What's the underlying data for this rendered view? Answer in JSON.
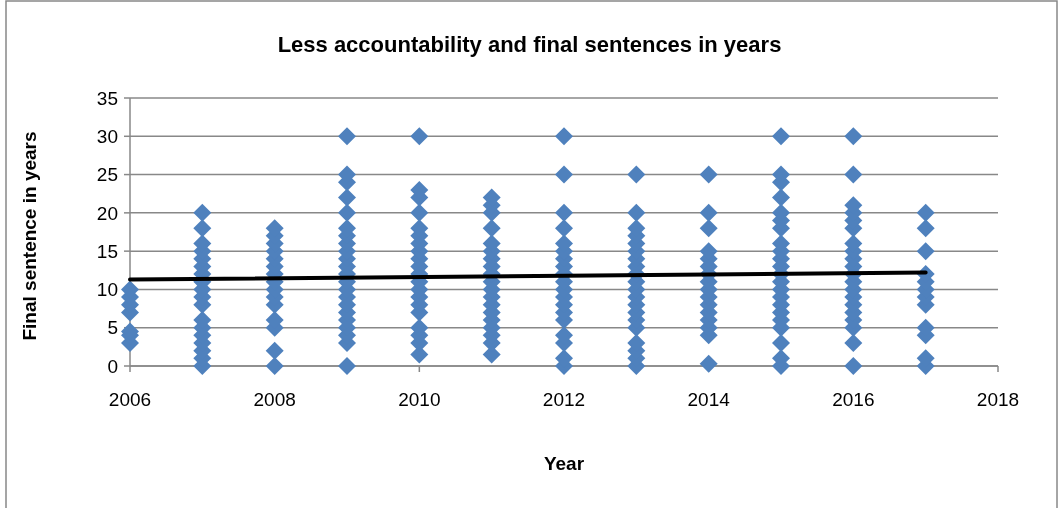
{
  "chart_data": {
    "type": "scatter",
    "title": "Less accountability and final sentences in years",
    "xlabel": "Year",
    "ylabel": "Final sentence in years",
    "xlim": [
      2006,
      2018
    ],
    "xticks": [
      2006,
      2008,
      2010,
      2012,
      2014,
      2016,
      2018
    ],
    "ylim": [
      0,
      35
    ],
    "yticks": [
      0,
      5,
      10,
      15,
      20,
      25,
      30,
      35
    ],
    "grid": "y",
    "series": [
      {
        "marker": "diamond",
        "color": "#4f81bd",
        "x": [
          2006,
          2006,
          2006,
          2006,
          2006,
          2006,
          2006,
          2007,
          2007,
          2007,
          2007,
          2007,
          2007,
          2007,
          2007,
          2007,
          2007,
          2007,
          2007,
          2007,
          2007,
          2007,
          2007,
          2007,
          2007,
          2008,
          2008,
          2008,
          2008,
          2008,
          2008,
          2008,
          2008,
          2008,
          2008,
          2008,
          2008,
          2008,
          2008,
          2008,
          2009,
          2009,
          2009,
          2009,
          2009,
          2009,
          2009,
          2009,
          2009,
          2009,
          2009,
          2009,
          2009,
          2009,
          2009,
          2009,
          2009,
          2009,
          2009,
          2009,
          2009,
          2009,
          2010,
          2010,
          2010,
          2010,
          2010,
          2010,
          2010,
          2010,
          2010,
          2010,
          2010,
          2010,
          2010,
          2010,
          2010,
          2010,
          2010,
          2010,
          2010,
          2010,
          2011,
          2011,
          2011,
          2011,
          2011,
          2011,
          2011,
          2011,
          2011,
          2011,
          2011,
          2011,
          2011,
          2011,
          2011,
          2011,
          2011,
          2011,
          2011,
          2012,
          2012,
          2012,
          2012,
          2012,
          2012,
          2012,
          2012,
          2012,
          2012,
          2012,
          2012,
          2012,
          2012,
          2012,
          2012,
          2012,
          2012,
          2012,
          2013,
          2013,
          2013,
          2013,
          2013,
          2013,
          2013,
          2013,
          2013,
          2013,
          2013,
          2013,
          2013,
          2013,
          2013,
          2013,
          2013,
          2013,
          2013,
          2013,
          2014,
          2014,
          2014,
          2014,
          2014,
          2014,
          2014,
          2014,
          2014,
          2014,
          2014,
          2014,
          2014,
          2014,
          2014,
          2014,
          2015,
          2015,
          2015,
          2015,
          2015,
          2015,
          2015,
          2015,
          2015,
          2015,
          2015,
          2015,
          2015,
          2015,
          2015,
          2015,
          2015,
          2015,
          2015,
          2015,
          2015,
          2015,
          2016,
          2016,
          2016,
          2016,
          2016,
          2016,
          2016,
          2016,
          2016,
          2016,
          2016,
          2016,
          2016,
          2016,
          2016,
          2016,
          2016,
          2016,
          2016,
          2016,
          2017,
          2017,
          2017,
          2017,
          2017,
          2017,
          2017,
          2017,
          2017,
          2017,
          2017,
          2017
        ],
        "values": [
          3,
          4,
          4.5,
          7,
          8,
          9,
          10,
          0,
          1,
          2,
          3,
          4,
          5,
          6,
          8,
          9,
          10,
          11,
          12,
          13,
          14,
          15,
          16,
          18,
          20,
          0,
          2,
          5,
          6,
          8,
          9,
          10,
          11,
          12,
          13,
          14,
          15,
          16,
          17,
          18,
          0,
          3,
          4,
          5,
          6,
          7,
          8,
          9,
          10,
          11,
          12,
          13,
          14,
          15,
          16,
          17,
          18,
          20,
          22,
          24,
          25,
          30,
          1.5,
          3,
          4,
          5,
          7,
          8,
          9,
          10,
          11,
          12,
          13,
          14,
          15,
          16,
          17,
          18,
          20,
          22,
          23,
          30,
          1.5,
          3,
          4,
          5,
          6,
          7,
          8,
          9,
          10,
          11,
          12,
          13,
          14,
          15,
          16,
          18,
          20,
          21,
          22,
          0,
          1,
          3,
          4,
          6,
          7,
          8,
          9,
          10,
          11,
          12,
          13,
          14,
          15,
          16,
          18,
          20,
          25,
          30,
          0,
          1,
          2,
          3,
          5,
          6,
          7,
          8,
          9,
          10,
          11,
          12,
          13,
          14,
          15,
          16,
          17,
          18,
          20,
          25,
          0.3,
          4,
          5,
          6,
          7,
          8,
          9,
          10,
          11,
          12,
          13,
          14,
          15,
          18,
          20,
          25,
          0,
          1,
          3,
          5,
          6,
          7,
          8,
          9,
          10,
          11,
          12,
          13,
          14,
          15,
          16,
          18,
          19,
          20,
          22,
          24,
          25,
          30,
          0,
          3,
          5,
          6,
          7,
          8,
          9,
          10,
          11,
          12,
          13,
          14,
          15,
          16,
          18,
          19,
          20,
          21,
          25,
          30,
          0,
          1,
          4,
          5,
          8,
          9,
          10,
          11,
          12,
          15,
          18,
          20
        ]
      },
      {
        "type": "line",
        "marker": "none",
        "color": "#000000",
        "x": [
          2006,
          2017
        ],
        "values": [
          11.3,
          12.2
        ]
      }
    ]
  }
}
